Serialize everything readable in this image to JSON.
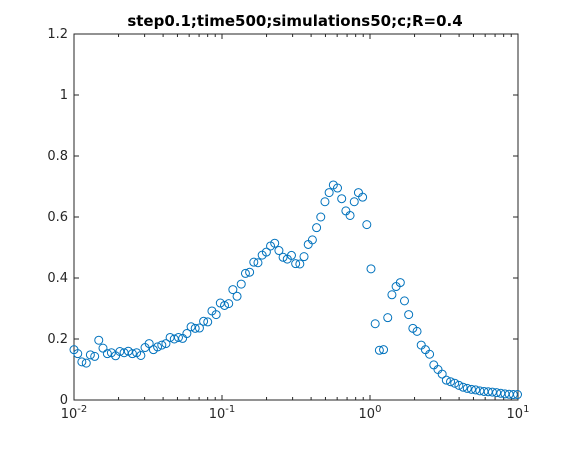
{
  "chart_data": {
    "type": "scatter",
    "title": "step0.1;time500;simulations50;c;R=0.4",
    "xlabel": "",
    "ylabel": "",
    "xscale": "log",
    "xlim": [
      0.01,
      10
    ],
    "ylim": [
      0,
      1.2
    ],
    "grid": false,
    "legend": "none",
    "marker": "circle-open",
    "color": "#0072BD",
    "x_ticks": [
      {
        "base": "10",
        "exp": "-2"
      },
      {
        "base": "10",
        "exp": "-1"
      },
      {
        "base": "10",
        "exp": "0"
      },
      {
        "base": "10",
        "exp": "1"
      }
    ],
    "y_ticks": [
      "0",
      "0.2",
      "0.4",
      "0.6",
      "0.8",
      "1",
      "1.2"
    ],
    "series": [
      {
        "x": [
          0.01,
          0.0106,
          0.0113,
          0.0121,
          0.0129,
          0.0138,
          0.0147,
          0.0157,
          0.0168,
          0.0179,
          0.0191,
          0.0204,
          0.0218,
          0.0233,
          0.0248,
          0.0265,
          0.0283,
          0.0302,
          0.0322,
          0.0344,
          0.0367,
          0.0392,
          0.0418,
          0.0446,
          0.0476,
          0.0508,
          0.0542,
          0.0579,
          0.0618,
          0.0659,
          0.0704,
          0.0751,
          0.0801,
          0.0855,
          0.0913,
          0.0974,
          0.104,
          0.111,
          0.1184,
          0.1264,
          0.1349,
          0.144,
          0.1537,
          0.164,
          0.175,
          0.1868,
          0.1994,
          0.2128,
          0.2271,
          0.2424,
          0.2587,
          0.2761,
          0.2947,
          0.3145,
          0.3357,
          0.3583,
          0.3824,
          0.4081,
          0.4356,
          0.4649,
          0.4962,
          0.5296,
          0.5652,
          0.6032,
          0.6438,
          0.6871,
          0.7334,
          0.7827,
          0.8354,
          0.8916,
          0.9516,
          1.0156,
          1.084,
          1.1569,
          1.2348,
          1.3179,
          1.4065,
          1.5012,
          1.6022,
          1.71,
          1.8251,
          1.9479,
          2.079,
          2.2189,
          2.3682,
          2.5275,
          2.6976,
          2.8792,
          3.0729,
          3.2797,
          3.5004,
          3.736,
          3.9874,
          4.2557,
          4.5421,
          4.8477,
          5.174,
          5.5222,
          5.8938,
          6.2904,
          6.7137,
          7.1655,
          7.6477,
          8.1623,
          8.7116,
          9.2978,
          9.9236
        ],
        "y": [
          0.165,
          0.152,
          0.125,
          0.121,
          0.148,
          0.143,
          0.196,
          0.17,
          0.152,
          0.155,
          0.145,
          0.159,
          0.155,
          0.16,
          0.152,
          0.155,
          0.146,
          0.172,
          0.185,
          0.165,
          0.174,
          0.18,
          0.185,
          0.205,
          0.2,
          0.205,
          0.202,
          0.218,
          0.24,
          0.235,
          0.236,
          0.258,
          0.256,
          0.292,
          0.28,
          0.318,
          0.31,
          0.316,
          0.362,
          0.34,
          0.38,
          0.415,
          0.419,
          0.452,
          0.45,
          0.475,
          0.485,
          0.505,
          0.514,
          0.49,
          0.468,
          0.462,
          0.474,
          0.447,
          0.446,
          0.47,
          0.51,
          0.525,
          0.565,
          0.6,
          0.65,
          0.68,
          0.705,
          0.695,
          0.66,
          0.62,
          0.605,
          0.65,
          0.68,
          0.665,
          0.575,
          0.43,
          0.25,
          0.163,
          0.165,
          0.27,
          0.345,
          0.372,
          0.385,
          0.325,
          0.28,
          0.235,
          0.225,
          0.18,
          0.165,
          0.15,
          0.115,
          0.1,
          0.085,
          0.065,
          0.06,
          0.055,
          0.048,
          0.042,
          0.038,
          0.035,
          0.033,
          0.03,
          0.028,
          0.027,
          0.026,
          0.024,
          0.022,
          0.02,
          0.019,
          0.018,
          0.018
        ]
      }
    ]
  }
}
